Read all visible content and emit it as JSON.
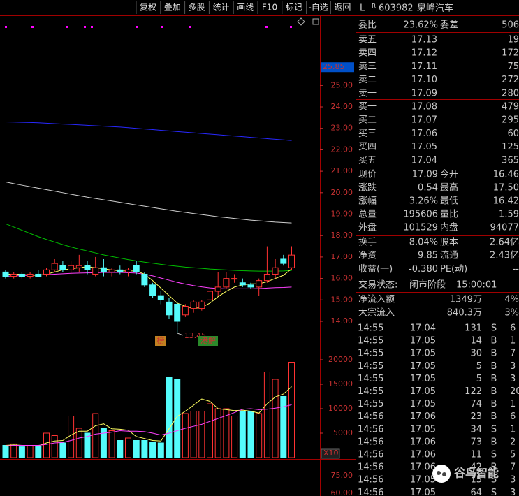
{
  "toolbar": [
    "复权",
    "叠加",
    "多股",
    "统计",
    "画线",
    "F10",
    "标记",
    "-自选",
    "返回"
  ],
  "header": {
    "market": "L",
    "flag": "R",
    "code": "603982",
    "name": "泉峰汽车"
  },
  "committee": [
    {
      "label": "委比",
      "value": "23.62%",
      "color": "#ff3232"
    },
    {
      "label": "委差",
      "value": "506",
      "color": "#ff3232"
    }
  ],
  "asks": [
    [
      "卖五",
      "17.13",
      "19"
    ],
    [
      "卖四",
      "17.12",
      "172"
    ],
    [
      "卖三",
      "17.11",
      "75"
    ],
    [
      "卖二",
      "17.10",
      "272"
    ],
    [
      "卖一",
      "17.09",
      "280"
    ]
  ],
  "bids": [
    [
      "买一",
      "17.08",
      "479"
    ],
    [
      "买二",
      "17.07",
      "295"
    ],
    [
      "买三",
      "17.06",
      "60"
    ],
    [
      "买四",
      "17.05",
      "125"
    ],
    [
      "买五",
      "17.04",
      "365"
    ]
  ],
  "quote": [
    [
      {
        "label": "现价",
        "value": "17.09",
        "color": "#ff3232"
      },
      {
        "label": "今开",
        "value": "16.46",
        "color": "#00e600"
      }
    ],
    [
      {
        "label": "涨跌",
        "value": "0.54",
        "color": "#ff3232"
      },
      {
        "label": "最高",
        "value": "17.50",
        "color": "#ff3232"
      }
    ],
    [
      {
        "label": "涨幅",
        "value": "3.26%",
        "color": "#ff3232"
      },
      {
        "label": "最低",
        "value": "16.42",
        "color": "#00e600"
      }
    ],
    [
      {
        "label": "总量",
        "value": "195606",
        "color": "#ffff00"
      },
      {
        "label": "量比",
        "value": "1.59",
        "color": "#ff3232"
      }
    ],
    [
      {
        "label": "外盘",
        "value": "101529",
        "color": "#ff3232"
      },
      {
        "label": "内盘",
        "value": "94077",
        "color": "#00e600"
      }
    ]
  ],
  "finance": [
    [
      {
        "label": "换手",
        "value": "8.04%",
        "color": "#e0e0e0"
      },
      {
        "label": "股本",
        "value": "2.64亿",
        "color": "#e0e0e0"
      }
    ],
    [
      {
        "label": "净资",
        "value": "9.85",
        "color": "#e0e0e0"
      },
      {
        "label": "流通",
        "value": "2.43亿",
        "color": "#e0e0e0"
      }
    ],
    [
      {
        "label": "收益(一)",
        "value": "-0.380",
        "color": "#e0e0e0"
      },
      {
        "label": "PE(动)",
        "value": "--",
        "color": "#e0e0e0"
      }
    ]
  ],
  "status": {
    "label": "交易状态:",
    "value": "闭市阶段",
    "time": "15:00:01"
  },
  "flows": [
    {
      "label": "净流入额",
      "value": "1349万",
      "pct": "4%"
    },
    {
      "label": "大宗流入",
      "value": "840.3万",
      "pct": "3%"
    }
  ],
  "trades": [
    [
      "14:55",
      "17.04",
      "131",
      "S",
      "6"
    ],
    [
      "14:55",
      "17.05",
      "14",
      "B",
      "1"
    ],
    [
      "14:55",
      "17.05",
      "30",
      "B",
      "7"
    ],
    [
      "14:55",
      "17.05",
      "5",
      "B",
      "3"
    ],
    [
      "14:55",
      "17.05",
      "5",
      "B",
      "3"
    ],
    [
      "14:55",
      "17.05",
      "122",
      "B",
      "20"
    ],
    [
      "14:55",
      "17.05",
      "74",
      "B",
      "1"
    ],
    [
      "14:56",
      "17.06",
      "23",
      "B",
      "6"
    ],
    [
      "14:56",
      "17.05",
      "34",
      "S",
      "1"
    ],
    [
      "14:56",
      "17.06",
      "73",
      "B",
      "2"
    ],
    [
      "14:56",
      "17.06",
      "11",
      "S",
      "5"
    ],
    [
      "14:56",
      "17.06",
      "42",
      "B",
      "7"
    ],
    [
      "14:56",
      "17.05",
      "15",
      "S",
      "3"
    ],
    [
      "14:56",
      "17.05",
      "64",
      "S",
      "3"
    ]
  ],
  "watermark": "谷鸟智能",
  "lower_panel_labels": [
    "75.00",
    "60.00"
  ],
  "chart_data": [
    {
      "type": "candlestick",
      "up_color": "#ff3232",
      "down_color": "#54fcfc",
      "open": [
        16.3,
        16.1,
        16.2,
        16.1,
        16.2,
        16.2,
        16.4,
        16.6,
        16.4,
        16.5,
        16.6,
        16.2,
        16.5,
        16.3,
        16.4,
        16.3,
        16.6,
        16.2,
        15.7,
        15.2,
        14.9,
        14.8,
        14.3,
        14.6,
        14.6,
        15.0,
        15.4,
        15.6,
        16.0,
        15.8,
        15.7,
        15.6,
        15.9,
        16.2,
        16.9,
        16.5
      ],
      "high": [
        16.4,
        16.3,
        16.3,
        16.3,
        16.4,
        16.5,
        16.9,
        16.8,
        16.8,
        17.1,
        16.8,
        17.0,
        16.9,
        16.5,
        16.6,
        16.5,
        16.8,
        16.3,
        15.8,
        15.4,
        15.1,
        14.9,
        14.8,
        15.0,
        15.0,
        15.6,
        16.3,
        16.3,
        16.2,
        16.0,
        15.8,
        16.0,
        17.5,
        16.9,
        17.1,
        17.5
      ],
      "low": [
        16.0,
        16.0,
        16.0,
        16.0,
        16.1,
        16.1,
        16.3,
        16.3,
        16.2,
        16.3,
        16.2,
        16.1,
        16.1,
        16.1,
        16.2,
        16.1,
        16.2,
        15.6,
        15.1,
        14.8,
        14.1,
        13.45,
        14.2,
        14.4,
        14.5,
        14.9,
        15.2,
        15.5,
        15.8,
        15.6,
        15.5,
        15.2,
        15.8,
        16.0,
        16.6,
        16.4
      ],
      "close": [
        16.1,
        16.2,
        16.1,
        16.2,
        16.1,
        16.4,
        16.7,
        16.4,
        16.6,
        16.6,
        16.4,
        16.5,
        16.3,
        16.4,
        16.3,
        16.4,
        16.3,
        15.7,
        15.2,
        15.0,
        14.3,
        14.0,
        14.7,
        14.9,
        14.9,
        15.4,
        15.6,
        16.0,
        16.0,
        15.7,
        15.6,
        15.9,
        16.2,
        16.5,
        16.7,
        17.09
      ],
      "lines": [
        {
          "color": "#2828ff",
          "values": [
            23.3,
            23.29,
            23.28,
            23.27,
            23.26,
            23.24,
            23.22,
            23.2,
            23.18,
            23.16,
            23.14,
            23.12,
            23.1,
            23.08,
            23.06,
            23.03,
            23.0,
            22.97,
            22.94,
            22.91,
            22.88,
            22.85,
            22.82,
            22.79,
            22.76,
            22.73,
            22.7,
            22.67,
            22.64,
            22.61,
            22.58,
            22.55,
            22.52,
            22.49,
            22.46,
            22.43
          ]
        },
        {
          "color": "#d0d0d0",
          "values": [
            20.5,
            20.42,
            20.35,
            20.28,
            20.21,
            20.14,
            20.07,
            20.0,
            19.93,
            19.86,
            19.79,
            19.73,
            19.67,
            19.61,
            19.55,
            19.49,
            19.43,
            19.37,
            19.31,
            19.25,
            19.19,
            19.13,
            19.08,
            19.03,
            18.98,
            18.93,
            18.88,
            18.84,
            18.8,
            18.76,
            18.72,
            18.69,
            18.66,
            18.63,
            18.61,
            18.59
          ]
        },
        {
          "color": "#00c000",
          "values": [
            18.55,
            18.4,
            18.25,
            18.1,
            17.95,
            17.82,
            17.7,
            17.58,
            17.47,
            17.37,
            17.28,
            17.19,
            17.1,
            17.02,
            16.95,
            16.88,
            16.82,
            16.76,
            16.71,
            16.66,
            16.61,
            16.57,
            16.53,
            16.5,
            16.47,
            16.44,
            16.42,
            16.4,
            16.38,
            16.36,
            16.35,
            16.34,
            16.34,
            16.34,
            16.35,
            16.37
          ]
        },
        {
          "color": "#ff40ff",
          "values": [
            16.1,
            16.12,
            16.13,
            16.15,
            16.16,
            16.18,
            16.2,
            16.22,
            16.24,
            16.25,
            16.26,
            16.27,
            16.28,
            16.28,
            16.28,
            16.27,
            16.25,
            16.2,
            16.12,
            16.02,
            15.92,
            15.82,
            15.74,
            15.67,
            15.61,
            15.56,
            15.53,
            15.52,
            15.52,
            15.52,
            15.52,
            15.53,
            15.55,
            15.57,
            15.58,
            15.6
          ]
        },
        {
          "color": "#ffff60",
          "values": [
            16.2,
            16.2,
            16.2,
            16.15,
            16.15,
            16.2,
            16.3,
            16.4,
            16.45,
            16.5,
            16.55,
            16.5,
            16.45,
            16.4,
            16.35,
            16.35,
            16.35,
            16.2,
            15.9,
            15.55,
            15.2,
            14.85,
            14.7,
            14.6,
            14.65,
            14.85,
            15.15,
            15.4,
            15.6,
            15.7,
            15.75,
            15.75,
            15.85,
            16.0,
            16.15,
            16.45
          ]
        }
      ],
      "ylim": [
        12.86,
        28.17
      ],
      "yticks": [
        {
          "value": 14,
          "label": "14.00"
        },
        {
          "value": 15,
          "label": "15.00"
        },
        {
          "value": 16,
          "label": "16.00"
        },
        {
          "value": 17,
          "label": "17.00"
        },
        {
          "value": 18,
          "label": "18.00"
        },
        {
          "value": 19,
          "label": "19.00"
        },
        {
          "value": 20,
          "label": "20.00"
        },
        {
          "value": 21,
          "label": "21.00"
        },
        {
          "value": 22,
          "label": "22.00"
        },
        {
          "value": 23,
          "label": "23.00"
        },
        {
          "value": 24,
          "label": "24.00"
        },
        {
          "value": 25,
          "label": "25.00"
        }
      ],
      "axis_marker": {
        "value": 25.85,
        "label": "25.85"
      },
      "annotation": "13.45",
      "tags": [
        "榜",
        "港解"
      ]
    },
    {
      "type": "bar",
      "up_color": "#ff3232",
      "down_color": "#54fcfc",
      "values": [
        2500,
        2800,
        2200,
        2500,
        2300,
        5000,
        4500,
        3000,
        8500,
        6000,
        5000,
        9000,
        6000,
        5500,
        3500,
        4000,
        3500,
        3500,
        3200,
        3000,
        16500,
        16000,
        9000,
        9500,
        9500,
        11000,
        10000,
        10000,
        8500,
        9500,
        9500,
        9000,
        17500,
        16000,
        12500,
        19500
      ],
      "lines": [
        {
          "color": "#ffff60",
          "values": [
            2500,
            2600,
            2500,
            2500,
            2400,
            3000,
            3400,
            3500,
            4600,
            5400,
            5400,
            6500,
            6900,
            5900,
            5800,
            5600,
            4300,
            3900,
            3500,
            3400,
            5900,
            8400,
            9500,
            10700,
            12000,
            11500,
            10000,
            9800,
            9600,
            9700,
            9500,
            9100,
            11000,
            12400,
            13000,
            14500
          ]
        },
        {
          "color": "#ff40ff",
          "values": [
            2400,
            2500,
            2500,
            2500,
            2500,
            2700,
            3000,
            3100,
            3500,
            4000,
            4300,
            4800,
            5000,
            5200,
            5500,
            5400,
            5400,
            5300,
            5000,
            4600,
            5000,
            5500,
            6000,
            6400,
            6800,
            7400,
            8000,
            8600,
            9200,
            9900,
            10000,
            9800,
            9900,
            10100,
            10400,
            10800
          ]
        }
      ],
      "ylim": [
        0,
        22570
      ],
      "yticks": [
        5000,
        10000,
        15000,
        20000
      ],
      "unit_label": "X10"
    }
  ]
}
